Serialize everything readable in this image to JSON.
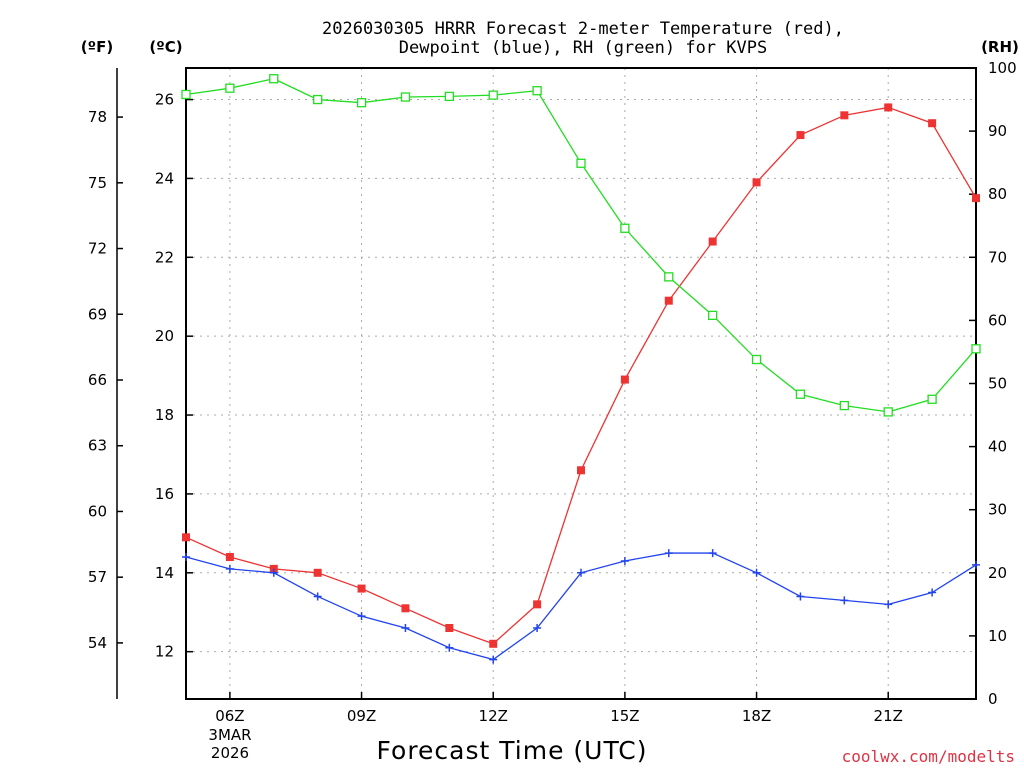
{
  "chart_data": {
    "type": "line",
    "title_line1": "2026030305 HRRR Forecast 2-meter Temperature (red),",
    "title_line2": "Dewpoint (blue), RH (green) for KVPS",
    "xlabel": "Forecast Time (UTC)",
    "credit": "coolwx.com/modelts",
    "units": {
      "fahrenheit": "(ºF)",
      "celsius": "(ºC)",
      "rh": "(RH)"
    },
    "x_hours": [
      5,
      6,
      7,
      8,
      9,
      10,
      11,
      12,
      13,
      14,
      15,
      16,
      17,
      18,
      19,
      20,
      21,
      22,
      23
    ],
    "xlim": [
      5,
      23
    ],
    "x_ticks": [
      {
        "hour": 6,
        "label": "06Z"
      },
      {
        "hour": 9,
        "label": "09Z"
      },
      {
        "hour": 12,
        "label": "12Z"
      },
      {
        "hour": 15,
        "label": "15Z"
      },
      {
        "hour": 18,
        "label": "18Z"
      },
      {
        "hour": 21,
        "label": "21Z"
      }
    ],
    "date_label_line1": "3MAR",
    "date_label_line2": "2026",
    "celsius_axis": {
      "lim": [
        10.8,
        26.8
      ],
      "ticks": [
        12,
        14,
        16,
        18,
        20,
        22,
        24,
        26
      ]
    },
    "fahrenheit_axis": {
      "ticks": [
        54,
        57,
        60,
        63,
        66,
        69,
        72,
        75,
        78
      ]
    },
    "rh_axis": {
      "lim": [
        0,
        100
      ],
      "ticks": [
        0,
        10,
        20,
        30,
        40,
        50,
        60,
        70,
        80,
        90,
        100
      ]
    },
    "series": [
      {
        "name": "Temperature",
        "units": "C",
        "color": "#ee3333",
        "marker": "filled-square",
        "values": [
          14.9,
          14.4,
          14.1,
          14.0,
          13.6,
          13.1,
          12.6,
          12.2,
          13.2,
          16.6,
          18.9,
          20.9,
          22.4,
          23.9,
          25.1,
          25.6,
          25.8,
          25.4,
          23.5
        ]
      },
      {
        "name": "Dewpoint",
        "units": "C",
        "color": "#2244ee",
        "marker": "plus",
        "values": [
          14.4,
          14.1,
          14.0,
          13.4,
          12.9,
          12.6,
          12.1,
          11.8,
          12.6,
          14.0,
          14.3,
          14.5,
          14.5,
          14.0,
          13.4,
          13.3,
          13.2,
          13.5,
          14.2
        ]
      },
      {
        "name": "RH",
        "units": "%",
        "color": "#22dd22",
        "marker": "open-square",
        "values": [
          95.8,
          96.8,
          98.3,
          95.0,
          94.5,
          95.4,
          95.5,
          95.7,
          96.4,
          84.9,
          74.6,
          66.9,
          60.8,
          53.8,
          48.3,
          46.5,
          45.5,
          47.5,
          55.5
        ]
      }
    ]
  }
}
